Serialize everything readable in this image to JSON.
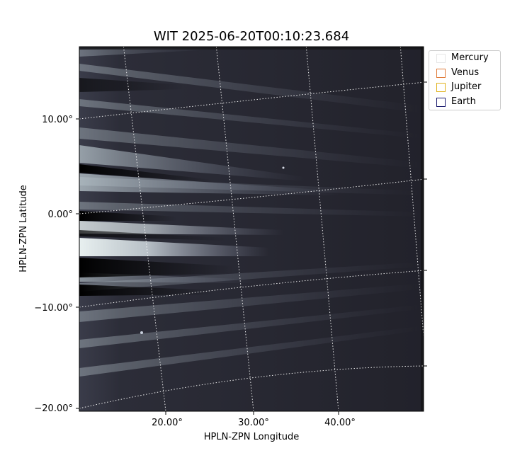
{
  "chart_data": {
    "type": "image",
    "title": "WIT 2025-06-20T00:10:23.684",
    "xlabel": "HPLN-ZPN Longitude",
    "ylabel": "HPLN-ZPN Latitude",
    "x_ticks": [
      "20.00°",
      "30.00°",
      "40.00°"
    ],
    "y_ticks": [
      "10.00°",
      "0.00°",
      "−10.00°",
      "−20.00°"
    ],
    "grid": "dotted white coordinate grid",
    "colormap": "bone (grayscale-blue)",
    "legend_placement": "outside right",
    "legend": [
      {
        "label": "Mercury",
        "color": "#e6e6e6"
      },
      {
        "label": "Venus",
        "color": "#e07b39"
      },
      {
        "label": "Jupiter",
        "color": "#e0b21c"
      },
      {
        "label": "Earth",
        "color": "#1a1a6e"
      }
    ]
  }
}
